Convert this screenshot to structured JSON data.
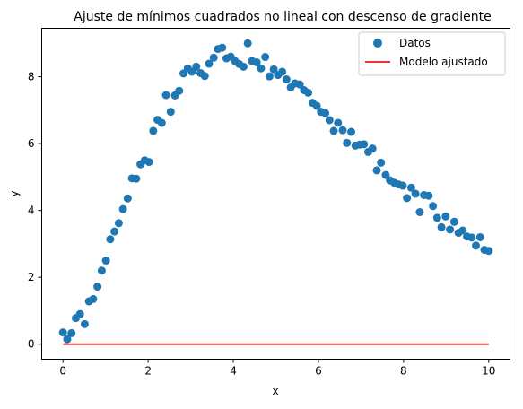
{
  "chart_data": {
    "type": "scatter",
    "title": "Ajuste de mínimos cuadrados no lineal con descenso de gradiente",
    "xlabel": "x",
    "ylabel": "y",
    "xlim": [
      -0.5,
      10.5
    ],
    "ylim": [
      -0.45,
      9.45
    ],
    "xticks": [
      0,
      2,
      4,
      6,
      8,
      10
    ],
    "yticks": [
      0,
      2,
      4,
      6,
      8
    ],
    "xtick_labels": [
      "0",
      "2",
      "4",
      "6",
      "8",
      "10"
    ],
    "ytick_labels": [
      "0",
      "2",
      "4",
      "6",
      "8"
    ],
    "grid": false,
    "legend_position": "top-right",
    "series": [
      {
        "name": "Datos",
        "kind": "scatter",
        "color": "#1f77b4",
        "x": [
          0.0,
          0.1,
          0.2,
          0.3,
          0.4,
          0.51,
          0.61,
          0.71,
          0.81,
          0.91,
          1.01,
          1.11,
          1.21,
          1.31,
          1.41,
          1.52,
          1.62,
          1.72,
          1.82,
          1.92,
          2.02,
          2.12,
          2.22,
          2.32,
          2.42,
          2.53,
          2.63,
          2.73,
          2.83,
          2.93,
          3.03,
          3.13,
          3.23,
          3.33,
          3.43,
          3.54,
          3.64,
          3.74,
          3.84,
          3.94,
          4.04,
          4.14,
          4.24,
          4.34,
          4.44,
          4.55,
          4.65,
          4.75,
          4.85,
          4.95,
          5.05,
          5.15,
          5.25,
          5.35,
          5.45,
          5.56,
          5.66,
          5.76,
          5.86,
          5.96,
          6.06,
          6.16,
          6.26,
          6.36,
          6.46,
          6.57,
          6.67,
          6.77,
          6.87,
          6.97,
          7.07,
          7.17,
          7.27,
          7.37,
          7.47,
          7.58,
          7.68,
          7.78,
          7.88,
          7.98,
          8.08,
          8.18,
          8.28,
          8.38,
          8.48,
          8.59,
          8.69,
          8.79,
          8.89,
          8.99,
          9.09,
          9.19,
          9.29,
          9.39,
          9.49,
          9.6,
          9.7,
          9.8,
          9.9,
          10.0
        ],
        "y": [
          0.35,
          0.15,
          0.33,
          0.78,
          0.9,
          0.6,
          1.28,
          1.35,
          1.72,
          2.2,
          2.5,
          3.14,
          3.37,
          3.62,
          4.04,
          4.36,
          4.96,
          4.95,
          5.38,
          5.5,
          5.45,
          6.38,
          6.71,
          6.62,
          7.45,
          6.95,
          7.44,
          7.58,
          8.1,
          8.25,
          8.15,
          8.3,
          8.11,
          8.02,
          8.39,
          8.57,
          8.83,
          8.87,
          8.55,
          8.6,
          8.47,
          8.38,
          8.3,
          9.0,
          8.47,
          8.43,
          8.25,
          8.59,
          8.01,
          8.22,
          8.05,
          8.15,
          7.92,
          7.68,
          7.8,
          7.77,
          7.6,
          7.52,
          7.22,
          7.13,
          6.95,
          6.91,
          6.7,
          6.38,
          6.62,
          6.4,
          6.02,
          6.35,
          5.94,
          5.97,
          5.98,
          5.75,
          5.85,
          5.2,
          5.43,
          5.06,
          4.9,
          4.83,
          4.78,
          4.74,
          4.37,
          4.68,
          4.5,
          3.95,
          4.46,
          4.44,
          4.13,
          3.78,
          3.5,
          3.82,
          3.43,
          3.66,
          3.33,
          3.4,
          3.22,
          3.19,
          2.95,
          3.2,
          2.82,
          2.79
        ]
      },
      {
        "name": "Modelo ajustado",
        "kind": "line",
        "color": "#e41a1c",
        "x": [
          0,
          10
        ],
        "y": [
          0,
          0
        ]
      }
    ]
  }
}
